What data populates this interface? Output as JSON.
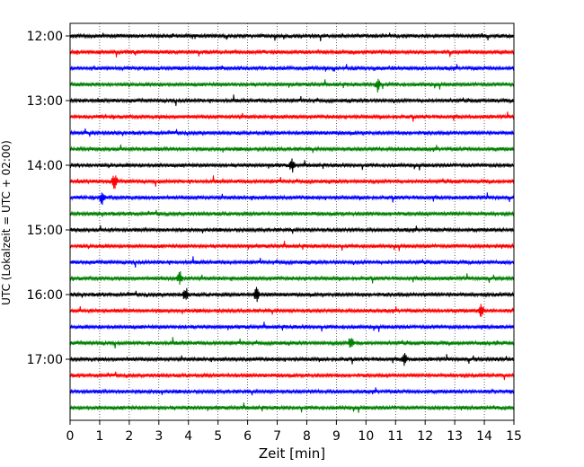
{
  "chart_data": {
    "type": "line",
    "title": "",
    "xlabel": "Zeit  [min]",
    "ylabel": "UTC (Lokalzeit = UTC + 02:00)",
    "xlim": [
      0,
      15
    ],
    "x_ticks": [
      0,
      1,
      2,
      3,
      4,
      5,
      6,
      7,
      8,
      9,
      10,
      11,
      12,
      13,
      14,
      15
    ],
    "y_tick_labels": [
      "12:00",
      "13:00",
      "14:00",
      "15:00",
      "16:00",
      "17:00"
    ],
    "grid": "vertical dotted at each minute",
    "trace_colors": [
      "#000000",
      "#ff0000",
      "#0000ff",
      "#008000"
    ],
    "traces": [
      {
        "start": "12:00",
        "color": "#000000"
      },
      {
        "start": "12:15",
        "color": "#ff0000"
      },
      {
        "start": "12:30",
        "color": "#0000ff"
      },
      {
        "start": "12:45",
        "color": "#008000"
      },
      {
        "start": "13:00",
        "color": "#000000"
      },
      {
        "start": "13:15",
        "color": "#ff0000"
      },
      {
        "start": "13:30",
        "color": "#0000ff"
      },
      {
        "start": "13:45",
        "color": "#008000"
      },
      {
        "start": "14:00",
        "color": "#000000"
      },
      {
        "start": "14:15",
        "color": "#ff0000"
      },
      {
        "start": "14:30",
        "color": "#0000ff"
      },
      {
        "start": "14:45",
        "color": "#008000"
      },
      {
        "start": "15:00",
        "color": "#000000"
      },
      {
        "start": "15:15",
        "color": "#ff0000"
      },
      {
        "start": "15:30",
        "color": "#0000ff"
      },
      {
        "start": "15:45",
        "color": "#008000"
      },
      {
        "start": "16:00",
        "color": "#000000"
      },
      {
        "start": "16:15",
        "color": "#ff0000"
      },
      {
        "start": "16:30",
        "color": "#0000ff"
      },
      {
        "start": "16:45",
        "color": "#008000"
      },
      {
        "start": "17:00",
        "color": "#000000"
      },
      {
        "start": "17:15",
        "color": "#ff0000"
      },
      {
        "start": "17:30",
        "color": "#0000ff"
      },
      {
        "start": "17:45",
        "color": "#008000"
      }
    ],
    "notable_events": [
      {
        "trace": "12:45",
        "minute": 10.4
      },
      {
        "trace": "14:00",
        "minute": 7.5
      },
      {
        "trace": "14:15",
        "minute": 1.5
      },
      {
        "trace": "14:30",
        "minute": 1.1
      },
      {
        "trace": "15:45",
        "minute": 3.7
      },
      {
        "trace": "16:00",
        "minute": 3.9
      },
      {
        "trace": "16:00",
        "minute": 6.3
      },
      {
        "trace": "16:15",
        "minute": 13.9
      },
      {
        "trace": "16:45",
        "minute": 9.5
      },
      {
        "trace": "17:00",
        "minute": 11.3
      }
    ]
  }
}
